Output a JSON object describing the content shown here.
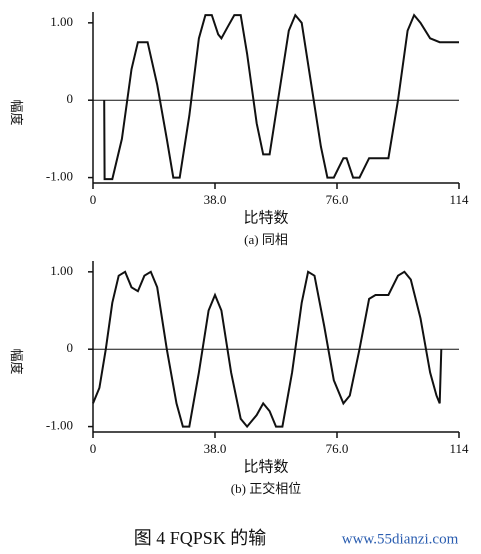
{
  "chart_data": [
    {
      "type": "line",
      "ylabel": "幅度",
      "xlabel": "比特数",
      "subtitle": "(a) 同相",
      "color": "#111111",
      "xlim": [
        0,
        114
      ],
      "xticks": [
        0,
        {
          "value": 38,
          "label": "38.0"
        },
        {
          "value": 76,
          "label": "76.0"
        },
        114
      ],
      "ylim": [
        -1.07,
        1.14
      ],
      "yticks": [
        {
          "value": -1,
          "label": "-1.00"
        },
        0,
        {
          "value": 1,
          "label": "1.00"
        }
      ],
      "x": [
        3.5,
        3.6,
        6,
        9,
        12,
        14,
        17,
        20,
        23,
        25,
        27,
        30,
        33,
        35,
        37,
        39,
        40,
        42,
        44,
        46,
        48,
        51,
        53,
        55,
        58,
        61,
        63,
        65,
        68,
        71,
        73,
        75,
        78,
        79,
        81,
        83,
        86,
        92,
        95,
        98,
        100,
        102,
        105,
        108,
        114
      ],
      "values": [
        0,
        -1.02,
        -1.02,
        -0.5,
        0.4,
        0.75,
        0.75,
        0.2,
        -0.5,
        -1.0,
        -1.0,
        -0.2,
        0.8,
        1.1,
        1.1,
        0.85,
        0.8,
        0.95,
        1.1,
        1.1,
        0.6,
        -0.3,
        -0.7,
        -0.7,
        0.1,
        0.9,
        1.1,
        1.0,
        0.2,
        -0.6,
        -1.0,
        -1.0,
        -0.75,
        -0.75,
        -1.0,
        -1.0,
        -0.75,
        -0.75,
        0,
        0.9,
        1.1,
        1.0,
        0.8,
        0.75,
        0.75
      ]
    },
    {
      "type": "line",
      "ylabel": "幅度",
      "xlabel": "比特数",
      "subtitle": "(b) 正交相位",
      "color": "#111111",
      "xlim": [
        0,
        114
      ],
      "xticks": [
        0,
        {
          "value": 38,
          "label": "38.0"
        },
        {
          "value": 76,
          "label": "76.0"
        },
        114
      ],
      "ylim": [
        -1.07,
        1.14
      ],
      "yticks": [
        {
          "value": -1,
          "label": "-1.00"
        },
        0,
        {
          "value": 1,
          "label": "1.00"
        }
      ],
      "x": [
        0,
        2,
        4,
        6,
        8,
        10,
        12,
        14,
        16,
        18,
        20,
        23,
        26,
        28,
        30,
        33,
        36,
        38,
        40,
        43,
        46,
        48,
        51,
        53,
        55,
        57,
        59,
        62,
        65,
        67,
        69,
        72,
        75,
        78,
        80,
        83,
        86,
        88,
        92,
        95,
        97,
        99,
        102,
        105,
        107,
        108,
        108.5
      ],
      "values": [
        -0.7,
        -0.5,
        0,
        0.6,
        0.95,
        1.0,
        0.8,
        0.75,
        0.95,
        1.0,
        0.8,
        0,
        -0.7,
        -1.0,
        -1.0,
        -0.3,
        0.5,
        0.7,
        0.5,
        -0.3,
        -0.9,
        -1.0,
        -0.85,
        -0.7,
        -0.8,
        -1.0,
        -1.0,
        -0.3,
        0.6,
        1.0,
        0.95,
        0.3,
        -0.4,
        -0.7,
        -0.6,
        0,
        0.65,
        0.7,
        0.7,
        0.95,
        1.0,
        0.9,
        0.4,
        -0.3,
        -0.6,
        -0.7,
        0
      ]
    }
  ],
  "caption": "图 4   FQPSK 的输",
  "watermark": "www.55dianzi.com"
}
